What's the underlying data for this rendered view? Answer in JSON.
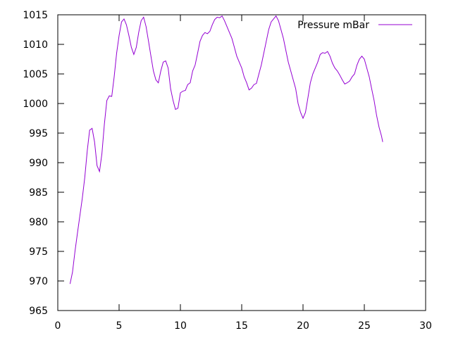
{
  "chart_data": {
    "type": "line",
    "title": "",
    "xlabel": "",
    "ylabel": "",
    "xlim": [
      0,
      30
    ],
    "ylim": [
      965,
      1015
    ],
    "grid": false,
    "legend_position": "top-right",
    "x_ticks": [
      "0",
      "5",
      "10",
      "15",
      "20",
      "25",
      "30"
    ],
    "y_ticks": [
      "965",
      "970",
      "975",
      "980",
      "985",
      "990",
      "995",
      "1000",
      "1005",
      "1010",
      "1015"
    ],
    "series": [
      {
        "name": "Pressure mBar",
        "color": "#9400d3",
        "points": [
          [
            1.0,
            969.5
          ],
          [
            1.2,
            971.5
          ],
          [
            1.4,
            975.0
          ],
          [
            1.6,
            978.0
          ],
          [
            1.8,
            981.0
          ],
          [
            2.0,
            984.0
          ],
          [
            2.2,
            987.5
          ],
          [
            2.4,
            992.0
          ],
          [
            2.6,
            995.5
          ],
          [
            2.8,
            995.8
          ],
          [
            3.0,
            993.5
          ],
          [
            3.2,
            989.5
          ],
          [
            3.4,
            988.5
          ],
          [
            3.6,
            991.5
          ],
          [
            3.8,
            996.5
          ],
          [
            4.0,
            1000.5
          ],
          [
            4.2,
            1001.3
          ],
          [
            4.4,
            1001.2
          ],
          [
            4.6,
            1004.5
          ],
          [
            4.8,
            1008.5
          ],
          [
            5.0,
            1011.5
          ],
          [
            5.2,
            1013.8
          ],
          [
            5.4,
            1014.3
          ],
          [
            5.6,
            1013.3
          ],
          [
            5.8,
            1011.5
          ],
          [
            6.0,
            1009.5
          ],
          [
            6.2,
            1008.3
          ],
          [
            6.4,
            1009.5
          ],
          [
            6.6,
            1012.0
          ],
          [
            6.8,
            1014.0
          ],
          [
            7.0,
            1014.6
          ],
          [
            7.2,
            1013.0
          ],
          [
            7.4,
            1010.5
          ],
          [
            7.6,
            1008.0
          ],
          [
            7.8,
            1005.5
          ],
          [
            8.0,
            1004.0
          ],
          [
            8.2,
            1003.5
          ],
          [
            8.4,
            1005.5
          ],
          [
            8.6,
            1007.0
          ],
          [
            8.8,
            1007.2
          ],
          [
            9.0,
            1006.0
          ],
          [
            9.2,
            1002.5
          ],
          [
            9.4,
            1000.5
          ],
          [
            9.6,
            999.0
          ],
          [
            9.8,
            999.2
          ],
          [
            10.0,
            1001.8
          ],
          [
            10.2,
            1002.1
          ],
          [
            10.4,
            1002.2
          ],
          [
            10.6,
            1003.2
          ],
          [
            10.8,
            1003.5
          ],
          [
            11.0,
            1005.5
          ],
          [
            11.2,
            1006.5
          ],
          [
            11.4,
            1008.5
          ],
          [
            11.6,
            1010.5
          ],
          [
            11.8,
            1011.5
          ],
          [
            12.0,
            1012.0
          ],
          [
            12.2,
            1011.8
          ],
          [
            12.4,
            1012.2
          ],
          [
            12.6,
            1013.3
          ],
          [
            12.8,
            1014.2
          ],
          [
            13.0,
            1014.6
          ],
          [
            13.2,
            1014.5
          ],
          [
            13.4,
            1014.8
          ],
          [
            13.6,
            1014.0
          ],
          [
            13.8,
            1013.0
          ],
          [
            14.0,
            1012.0
          ],
          [
            14.2,
            1011.0
          ],
          [
            14.4,
            1009.5
          ],
          [
            14.6,
            1008.0
          ],
          [
            14.8,
            1007.0
          ],
          [
            15.0,
            1006.0
          ],
          [
            15.2,
            1004.5
          ],
          [
            15.4,
            1003.5
          ],
          [
            15.6,
            1002.3
          ],
          [
            15.8,
            1002.6
          ],
          [
            16.0,
            1003.2
          ],
          [
            16.2,
            1003.4
          ],
          [
            16.4,
            1005.0
          ],
          [
            16.6,
            1006.5
          ],
          [
            16.8,
            1008.5
          ],
          [
            17.0,
            1010.5
          ],
          [
            17.2,
            1012.5
          ],
          [
            17.4,
            1013.8
          ],
          [
            17.6,
            1014.3
          ],
          [
            17.8,
            1014.8
          ],
          [
            18.0,
            1014.0
          ],
          [
            18.2,
            1012.5
          ],
          [
            18.4,
            1011.0
          ],
          [
            18.6,
            1009.0
          ],
          [
            18.8,
            1007.0
          ],
          [
            19.0,
            1005.5
          ],
          [
            19.2,
            1004.0
          ],
          [
            19.4,
            1002.5
          ],
          [
            19.6,
            1000.0
          ],
          [
            19.8,
            998.5
          ],
          [
            20.0,
            997.5
          ],
          [
            20.2,
            998.5
          ],
          [
            20.4,
            1001.0
          ],
          [
            20.6,
            1003.5
          ],
          [
            20.8,
            1005.0
          ],
          [
            21.0,
            1006.0
          ],
          [
            21.2,
            1007.0
          ],
          [
            21.4,
            1008.3
          ],
          [
            21.6,
            1008.6
          ],
          [
            21.8,
            1008.5
          ],
          [
            22.0,
            1008.8
          ],
          [
            22.2,
            1008.0
          ],
          [
            22.4,
            1006.8
          ],
          [
            22.6,
            1006.0
          ],
          [
            22.8,
            1005.5
          ],
          [
            23.0,
            1004.8
          ],
          [
            23.2,
            1004.0
          ],
          [
            23.4,
            1003.3
          ],
          [
            23.6,
            1003.5
          ],
          [
            23.8,
            1003.8
          ],
          [
            24.0,
            1004.5
          ],
          [
            24.2,
            1005.0
          ],
          [
            24.4,
            1006.5
          ],
          [
            24.6,
            1007.5
          ],
          [
            24.8,
            1008.0
          ],
          [
            25.0,
            1007.5
          ],
          [
            25.2,
            1006.0
          ],
          [
            25.4,
            1004.5
          ],
          [
            25.6,
            1002.5
          ],
          [
            25.8,
            1000.5
          ],
          [
            26.0,
            998.0
          ],
          [
            26.2,
            996.0
          ],
          [
            26.4,
            994.5
          ],
          [
            26.5,
            993.5
          ]
        ]
      }
    ]
  }
}
